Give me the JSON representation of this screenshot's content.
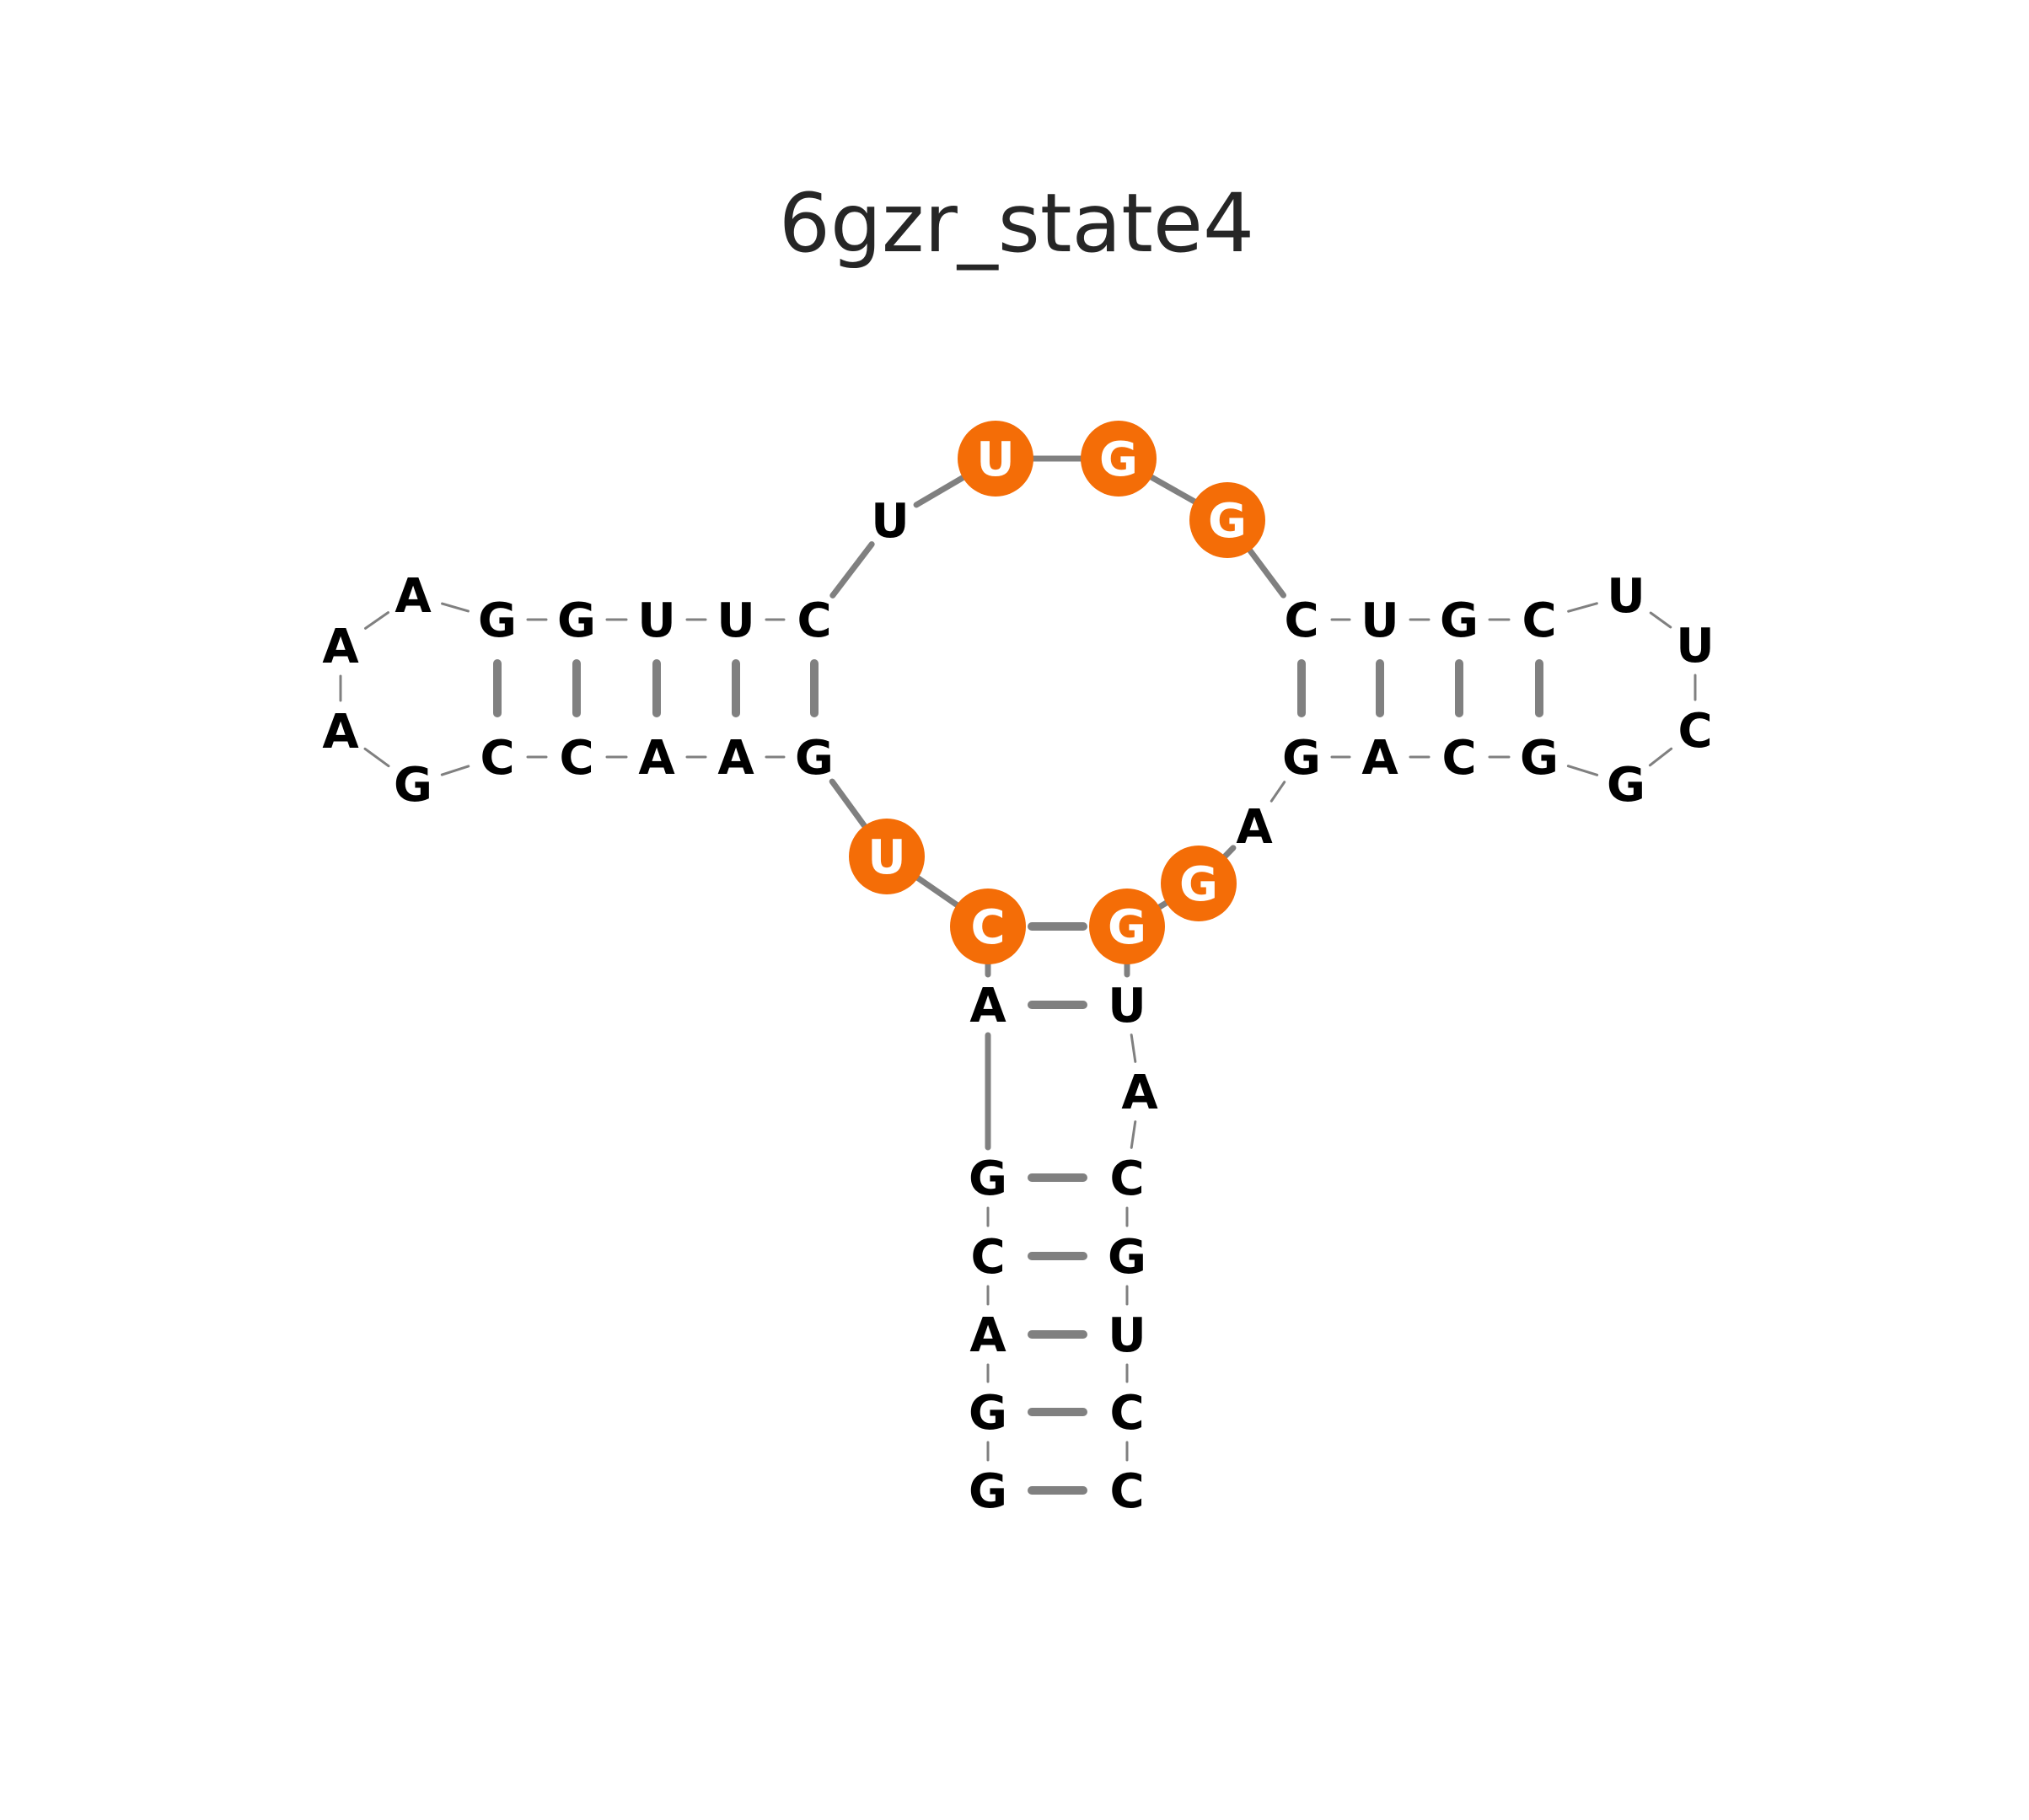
{
  "title": "6gzr_state4",
  "colors": {
    "highlight": "#f46d07",
    "backbone": "#808080",
    "pair": "#808080",
    "text": "#000000",
    "highlight_text": "#ffffff",
    "title": "#262626"
  },
  "nucleotides": [
    {
      "base": "G",
      "highlighted": false
    },
    {
      "base": "G",
      "highlighted": false
    },
    {
      "base": "A",
      "highlighted": false
    },
    {
      "base": "C",
      "highlighted": false
    },
    {
      "base": "G",
      "highlighted": false
    },
    {
      "base": "A",
      "highlighted": false
    },
    {
      "base": "C",
      "highlighted": true
    },
    {
      "base": "U",
      "highlighted": true
    },
    {
      "base": "G",
      "highlighted": false
    },
    {
      "base": "A",
      "highlighted": false
    },
    {
      "base": "A",
      "highlighted": false
    },
    {
      "base": "C",
      "highlighted": false
    },
    {
      "base": "C",
      "highlighted": false
    },
    {
      "base": "G",
      "highlighted": false
    },
    {
      "base": "A",
      "highlighted": false
    },
    {
      "base": "A",
      "highlighted": false
    },
    {
      "base": "A",
      "highlighted": false
    },
    {
      "base": "G",
      "highlighted": false
    },
    {
      "base": "G",
      "highlighted": false
    },
    {
      "base": "U",
      "highlighted": false
    },
    {
      "base": "U",
      "highlighted": false
    },
    {
      "base": "C",
      "highlighted": false
    },
    {
      "base": "U",
      "highlighted": false
    },
    {
      "base": "U",
      "highlighted": true
    },
    {
      "base": "G",
      "highlighted": true
    },
    {
      "base": "G",
      "highlighted": true
    },
    {
      "base": "C",
      "highlighted": false
    },
    {
      "base": "U",
      "highlighted": false
    },
    {
      "base": "G",
      "highlighted": false
    },
    {
      "base": "C",
      "highlighted": false
    },
    {
      "base": "U",
      "highlighted": false
    },
    {
      "base": "U",
      "highlighted": false
    },
    {
      "base": "C",
      "highlighted": false
    },
    {
      "base": "G",
      "highlighted": false
    },
    {
      "base": "G",
      "highlighted": false
    },
    {
      "base": "C",
      "highlighted": false
    },
    {
      "base": "A",
      "highlighted": false
    },
    {
      "base": "G",
      "highlighted": false
    },
    {
      "base": "A",
      "highlighted": false
    },
    {
      "base": "G",
      "highlighted": true
    },
    {
      "base": "G",
      "highlighted": true
    },
    {
      "base": "U",
      "highlighted": false
    },
    {
      "base": "A",
      "highlighted": false
    },
    {
      "base": "C",
      "highlighted": false
    },
    {
      "base": "G",
      "highlighted": false
    },
    {
      "base": "U",
      "highlighted": false
    },
    {
      "base": "C",
      "highlighted": false
    },
    {
      "base": "C",
      "highlighted": false
    }
  ],
  "pairs": [
    [
      1,
      48
    ],
    [
      2,
      47
    ],
    [
      3,
      46
    ],
    [
      4,
      45
    ],
    [
      5,
      44
    ],
    [
      6,
      42
    ],
    [
      7,
      41
    ],
    [
      9,
      22
    ],
    [
      10,
      21
    ],
    [
      11,
      20
    ],
    [
      12,
      19
    ],
    [
      13,
      18
    ],
    [
      27,
      38
    ],
    [
      28,
      37
    ],
    [
      29,
      36
    ],
    [
      30,
      35
    ]
  ]
}
